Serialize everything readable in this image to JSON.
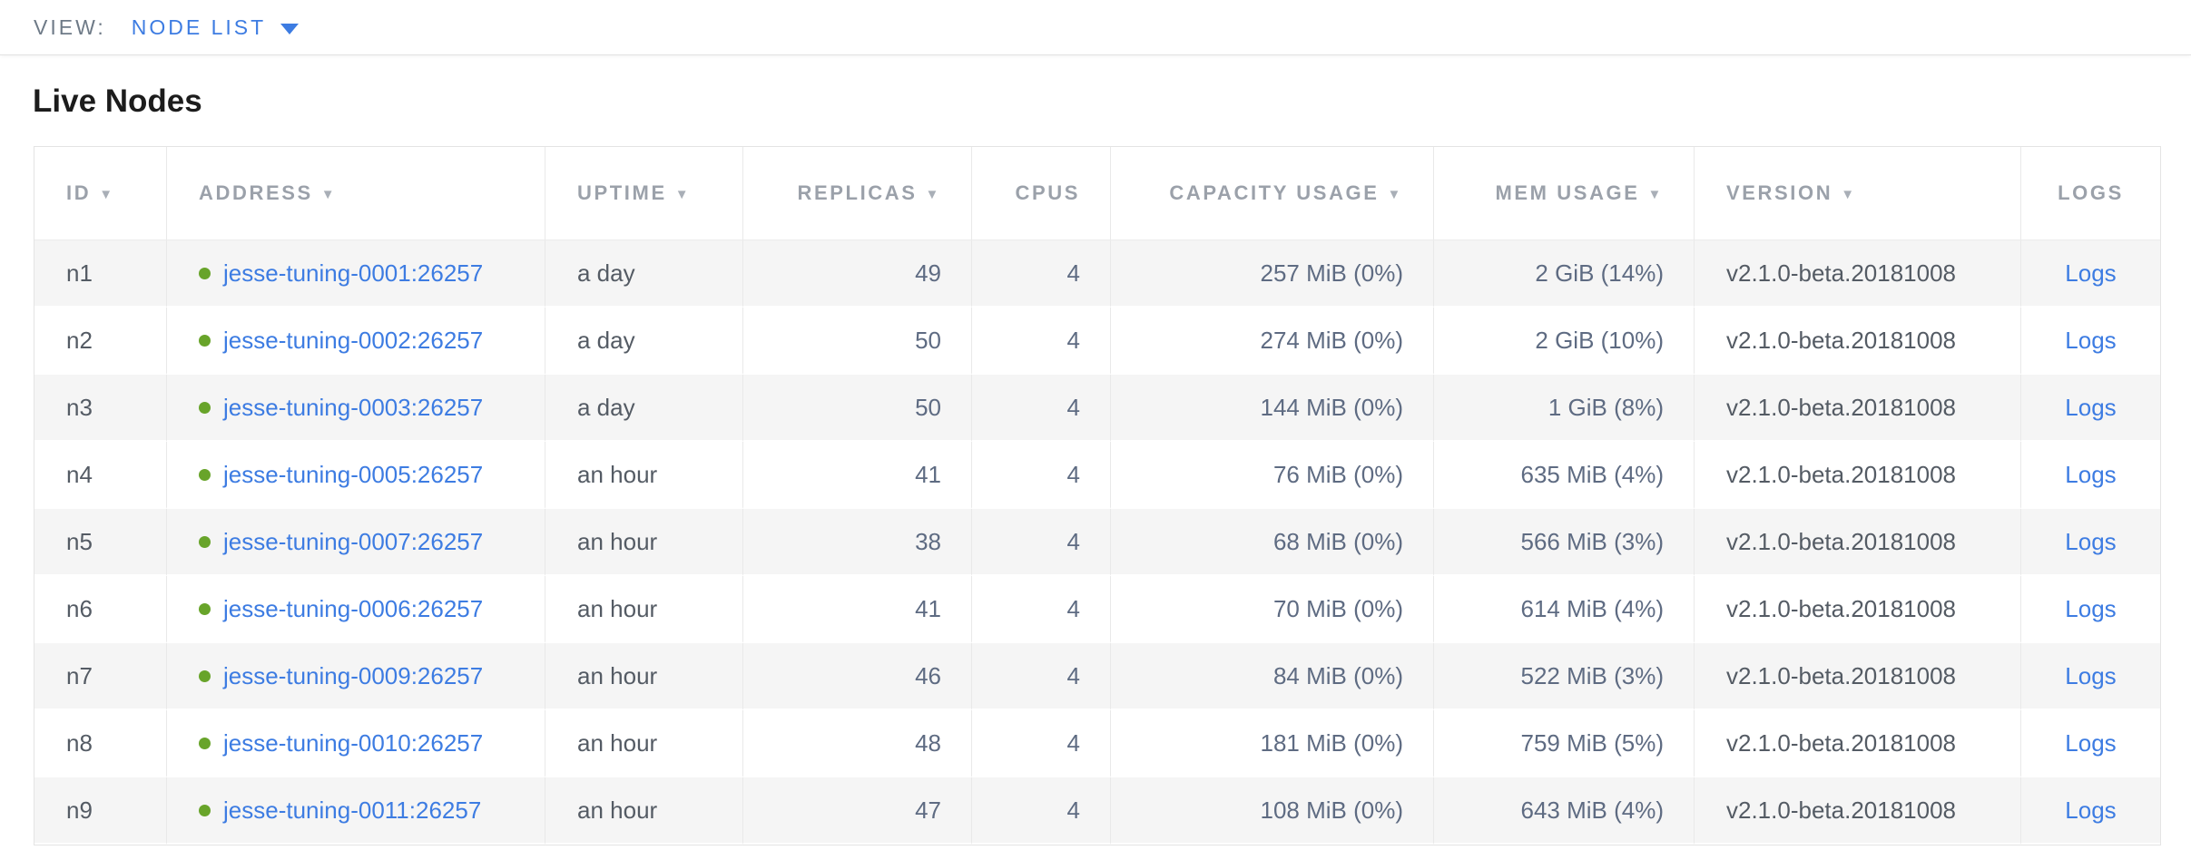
{
  "view_bar": {
    "label": "VIEW:",
    "selected": "NODE LIST"
  },
  "page": {
    "title": "Live Nodes"
  },
  "icons": {
    "sort_arrow": "▼",
    "node_status_dot": "●"
  },
  "colors": {
    "accent_blue": "#3d7ce2",
    "status_green_live": "#68a42a",
    "header_gray": "#9ba1aa",
    "row_stripe": "#f5f5f5"
  },
  "table": {
    "columns": [
      {
        "key": "id",
        "label": "ID",
        "sortable": true,
        "align": "left"
      },
      {
        "key": "address",
        "label": "ADDRESS",
        "sortable": true,
        "align": "left"
      },
      {
        "key": "uptime",
        "label": "UPTIME",
        "sortable": true,
        "align": "left"
      },
      {
        "key": "replicas",
        "label": "REPLICAS",
        "sortable": true,
        "align": "right"
      },
      {
        "key": "cpus",
        "label": "CPUS",
        "sortable": false,
        "align": "right"
      },
      {
        "key": "capacity",
        "label": "CAPACITY USAGE",
        "sortable": true,
        "align": "right"
      },
      {
        "key": "mem",
        "label": "MEM USAGE",
        "sortable": true,
        "align": "right"
      },
      {
        "key": "version",
        "label": "VERSION",
        "sortable": true,
        "align": "left"
      },
      {
        "key": "logs",
        "label": "LOGS",
        "sortable": false,
        "align": "center"
      }
    ],
    "rows": [
      {
        "id": "n1",
        "address": "jesse-tuning-0001:26257",
        "uptime": "a day",
        "replicas": "49",
        "cpus": "4",
        "capacity": "257 MiB (0%)",
        "mem": "2 GiB (14%)",
        "version": "v2.1.0-beta.20181008",
        "logs": "Logs",
        "status": "live"
      },
      {
        "id": "n2",
        "address": "jesse-tuning-0002:26257",
        "uptime": "a day",
        "replicas": "50",
        "cpus": "4",
        "capacity": "274 MiB (0%)",
        "mem": "2 GiB (10%)",
        "version": "v2.1.0-beta.20181008",
        "logs": "Logs",
        "status": "live"
      },
      {
        "id": "n3",
        "address": "jesse-tuning-0003:26257",
        "uptime": "a day",
        "replicas": "50",
        "cpus": "4",
        "capacity": "144 MiB (0%)",
        "mem": "1 GiB (8%)",
        "version": "v2.1.0-beta.20181008",
        "logs": "Logs",
        "status": "live"
      },
      {
        "id": "n4",
        "address": "jesse-tuning-0005:26257",
        "uptime": "an hour",
        "replicas": "41",
        "cpus": "4",
        "capacity": "76 MiB (0%)",
        "mem": "635 MiB (4%)",
        "version": "v2.1.0-beta.20181008",
        "logs": "Logs",
        "status": "live"
      },
      {
        "id": "n5",
        "address": "jesse-tuning-0007:26257",
        "uptime": "an hour",
        "replicas": "38",
        "cpus": "4",
        "capacity": "68 MiB (0%)",
        "mem": "566 MiB (3%)",
        "version": "v2.1.0-beta.20181008",
        "logs": "Logs",
        "status": "live"
      },
      {
        "id": "n6",
        "address": "jesse-tuning-0006:26257",
        "uptime": "an hour",
        "replicas": "41",
        "cpus": "4",
        "capacity": "70 MiB (0%)",
        "mem": "614 MiB (4%)",
        "version": "v2.1.0-beta.20181008",
        "logs": "Logs",
        "status": "live"
      },
      {
        "id": "n7",
        "address": "jesse-tuning-0009:26257",
        "uptime": "an hour",
        "replicas": "46",
        "cpus": "4",
        "capacity": "84 MiB (0%)",
        "mem": "522 MiB (3%)",
        "version": "v2.1.0-beta.20181008",
        "logs": "Logs",
        "status": "live"
      },
      {
        "id": "n8",
        "address": "jesse-tuning-0010:26257",
        "uptime": "an hour",
        "replicas": "48",
        "cpus": "4",
        "capacity": "181 MiB (0%)",
        "mem": "759 MiB (5%)",
        "version": "v2.1.0-beta.20181008",
        "logs": "Logs",
        "status": "live"
      },
      {
        "id": "n9",
        "address": "jesse-tuning-0011:26257",
        "uptime": "an hour",
        "replicas": "47",
        "cpus": "4",
        "capacity": "108 MiB (0%)",
        "mem": "643 MiB (4%)",
        "version": "v2.1.0-beta.20181008",
        "logs": "Logs",
        "status": "live"
      }
    ]
  }
}
